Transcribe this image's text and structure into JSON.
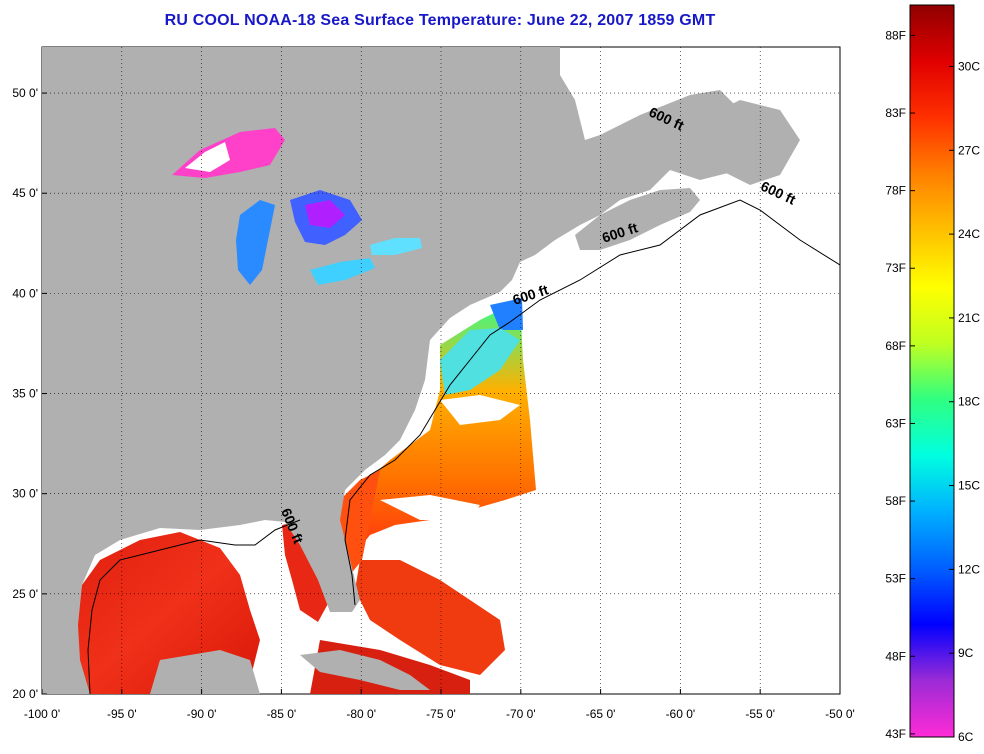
{
  "title": "RU COOL  NOAA-18  Sea Surface Temperature:  June 22, 2007 1859 GMT",
  "map": {
    "lon_range": [
      -100,
      -50
    ],
    "lat_range": [
      20,
      52.3
    ],
    "x_ticks": [
      {
        "value": -100,
        "label": "-100 0'"
      },
      {
        "value": -95,
        "label": "-95 0'"
      },
      {
        "value": -90,
        "label": "-90 0'"
      },
      {
        "value": -85,
        "label": "-85 0'"
      },
      {
        "value": -80,
        "label": "-80 0'"
      },
      {
        "value": -75,
        "label": "-75 0'"
      },
      {
        "value": -70,
        "label": "-70 0'"
      },
      {
        "value": -65,
        "label": "-65 0'"
      },
      {
        "value": -60,
        "label": "-60 0'"
      },
      {
        "value": -55,
        "label": "-55 0'"
      },
      {
        "value": -50,
        "label": "-50 0'"
      }
    ],
    "y_ticks": [
      {
        "value": 20,
        "label": "20 0'"
      },
      {
        "value": 25,
        "label": "25 0'"
      },
      {
        "value": 30,
        "label": "30 0'"
      },
      {
        "value": 35,
        "label": "35 0'"
      },
      {
        "value": 40,
        "label": "40 0'"
      },
      {
        "value": 45,
        "label": "45 0'"
      },
      {
        "value": 50,
        "label": "50 0'"
      }
    ],
    "grid": "dotted",
    "land_color": "#b0b0b0",
    "contour_labels": [
      {
        "text": "600 ft",
        "lon": -61,
        "lat": 48.5,
        "angle": 25
      },
      {
        "text": "600 ft",
        "lon": -54,
        "lat": 44.8,
        "angle": 25
      },
      {
        "text": "600 ft",
        "lon": -63.7,
        "lat": 42.8,
        "angle": -18
      },
      {
        "text": "600 ft",
        "lon": -69.3,
        "lat": 39.7,
        "angle": -18
      },
      {
        "text": "600 ft",
        "lon": -84.6,
        "lat": 28.3,
        "angle": 68
      }
    ]
  },
  "colorbar": {
    "min_c": 6,
    "max_c": 32.2,
    "stops": [
      "#ff2bd6",
      "#9b2bd6",
      "#0000ff",
      "#0060ff",
      "#00b0ff",
      "#00ffe0",
      "#30ff80",
      "#c0ff20",
      "#ffff00",
      "#ffc000",
      "#ff8000",
      "#ff3000",
      "#e00000",
      "#900000"
    ],
    "celsius_ticks": [
      {
        "value": 6,
        "label": "6C"
      },
      {
        "value": 9,
        "label": "9C"
      },
      {
        "value": 12,
        "label": "12C"
      },
      {
        "value": 15,
        "label": "15C"
      },
      {
        "value": 18,
        "label": "18C"
      },
      {
        "value": 21,
        "label": "21C"
      },
      {
        "value": 24,
        "label": "24C"
      },
      {
        "value": 27,
        "label": "27C"
      },
      {
        "value": 30,
        "label": "30C"
      }
    ],
    "fahrenheit_ticks": [
      {
        "value": 43,
        "label": "43F"
      },
      {
        "value": 48,
        "label": "48F"
      },
      {
        "value": 53,
        "label": "53F"
      },
      {
        "value": 58,
        "label": "58F"
      },
      {
        "value": 63,
        "label": "63F"
      },
      {
        "value": 68,
        "label": "68F"
      },
      {
        "value": 73,
        "label": "73F"
      },
      {
        "value": 78,
        "label": "78F"
      },
      {
        "value": 83,
        "label": "83F"
      },
      {
        "value": 88,
        "label": "88F"
      }
    ]
  }
}
